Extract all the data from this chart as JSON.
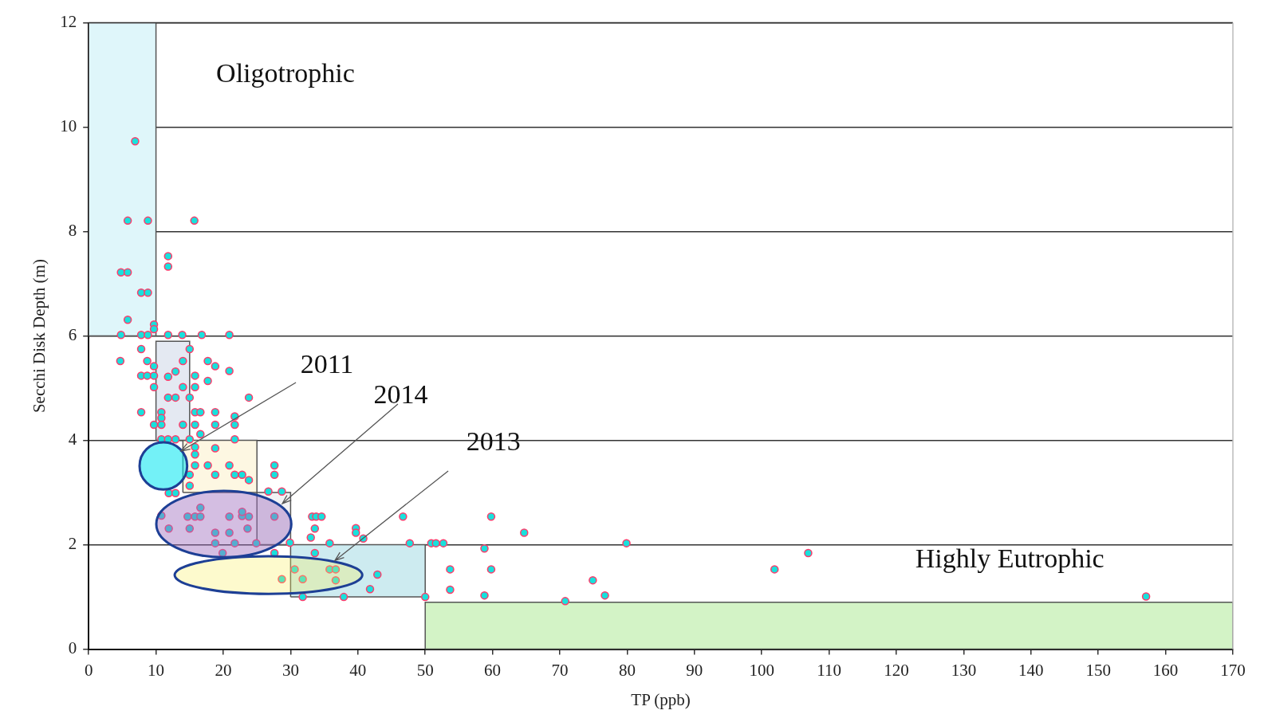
{
  "chart_data": {
    "type": "scatter",
    "xlabel": "TP (ppb)",
    "ylabel": "Secchi Disk Depth (m)",
    "xlim": [
      0,
      170
    ],
    "xticks": [
      0,
      10,
      20,
      30,
      40,
      50,
      60,
      70,
      80,
      90,
      100,
      110,
      120,
      130,
      140,
      150,
      160,
      170
    ],
    "ylim": [
      0,
      12
    ],
    "yticks": [
      0,
      2,
      4,
      6,
      8,
      10,
      12
    ],
    "grid": "y",
    "annotations": [
      "Oligotrophic",
      "Highly Eutrophic",
      {
        "text": "2011",
        "x": 13.7,
        "y": 3.8
      },
      "2014",
      "2013"
    ],
    "series": [
      {
        "type": "area",
        "color": "#dff6fa",
        "x": [
          0,
          0,
          10,
          10,
          0
        ],
        "values": [
          6,
          12,
          12,
          6,
          6
        ]
      },
      {
        "type": "area",
        "color": "#e4e9f2",
        "x": [
          10,
          10,
          15,
          15,
          10
        ],
        "values": [
          4,
          5.9,
          5.9,
          4,
          4
        ]
      },
      {
        "type": "area",
        "color": "#fdf7e2",
        "x": [
          14,
          14,
          25,
          25,
          14
        ],
        "values": [
          3,
          4,
          4,
          3,
          3
        ]
      },
      {
        "type": "area",
        "color": "#f2f2f4",
        "x": [
          25,
          25,
          30,
          30,
          25
        ],
        "values": [
          2,
          3,
          3,
          2,
          2
        ]
      },
      {
        "type": "area",
        "color": "#cdebf0",
        "x": [
          30,
          30,
          50,
          50,
          30
        ],
        "values": [
          1,
          2,
          2,
          1,
          1
        ]
      },
      {
        "type": "area",
        "color": "#d3f3c6",
        "x": [
          50,
          50,
          170,
          170,
          50
        ],
        "values": [
          0,
          0.9,
          0.9,
          0,
          0
        ]
      },
      {
        "marker": "circle",
        "color": "#19e0dc",
        "x": [
          6.9,
          5.8,
          8.8,
          15.7,
          11.8,
          11.8,
          4.8,
          5.8,
          7.8,
          8.8,
          5.8,
          9.7,
          9.7,
          4.8,
          7.8,
          8.8,
          11.8,
          13.9,
          16.8,
          20.9,
          7.8,
          15.0,
          4.7,
          8.7,
          9.7,
          14.0,
          17.7,
          18.8,
          20.9,
          7.8,
          8.7,
          9.7,
          11.8,
          12.9,
          15.8,
          17.7,
          9.7,
          14.0,
          15.8,
          23.8,
          11.8,
          12.9,
          15.0,
          7.8,
          10.8,
          15.8,
          16.6,
          18.8,
          21.7,
          10.8,
          9.7,
          10.8,
          14.0,
          15.8,
          18.8,
          21.7,
          16.6,
          10.8,
          11.8,
          12.9,
          15.0,
          21.7,
          15.8,
          18.8,
          15.8,
          17.7,
          20.9,
          15.8,
          15.0,
          18.8,
          21.7,
          22.8,
          23.8,
          27.6,
          27.6,
          15.0,
          11.9,
          12.9,
          26.7,
          28.7,
          10.8,
          14.7,
          15.8,
          16.6,
          16.6,
          20.9,
          22.8,
          23.8,
          27.6,
          22.8,
          11.9,
          15.0,
          18.8,
          20.9,
          23.6,
          18.8,
          21.7,
          24.9,
          19.9,
          27.6,
          33.2,
          33.8,
          34.6,
          33.6,
          33.0,
          29.9,
          30.6,
          28.7,
          31.8,
          31.8,
          35.8,
          39.7,
          39.7,
          40.8,
          46.7,
          47.7,
          50.9,
          51.6,
          52.7,
          59.8,
          64.7,
          58.8,
          53.7,
          59.8,
          74.9,
          53.7,
          42.9,
          41.8,
          37.9,
          50.0,
          58.8,
          70.8,
          76.7,
          79.9,
          33.6,
          35.8,
          36.7,
          36.7,
          101.9,
          106.9,
          157.1
        ],
        "values": [
          9.73,
          8.21,
          8.21,
          8.21,
          7.53,
          7.33,
          7.22,
          7.22,
          6.83,
          6.83,
          6.31,
          6.22,
          6.13,
          6.02,
          6.02,
          6.02,
          6.02,
          6.02,
          6.02,
          6.02,
          5.75,
          5.75,
          5.52,
          5.52,
          5.42,
          5.52,
          5.52,
          5.42,
          5.33,
          5.24,
          5.24,
          5.24,
          5.22,
          5.32,
          5.24,
          5.14,
          5.02,
          5.02,
          5.02,
          4.82,
          4.82,
          4.82,
          4.82,
          4.54,
          4.54,
          4.54,
          4.54,
          4.54,
          4.46,
          4.43,
          4.3,
          4.3,
          4.3,
          4.3,
          4.3,
          4.3,
          4.12,
          4.02,
          4.02,
          4.02,
          4.02,
          4.02,
          3.87,
          3.85,
          3.73,
          3.52,
          3.52,
          3.52,
          3.34,
          3.34,
          3.34,
          3.34,
          3.24,
          3.52,
          3.34,
          3.13,
          2.99,
          2.99,
          3.02,
          3.02,
          2.56,
          2.54,
          2.54,
          2.54,
          2.71,
          2.54,
          2.55,
          2.54,
          2.54,
          2.63,
          2.31,
          2.31,
          2.23,
          2.23,
          2.31,
          2.03,
          2.03,
          2.03,
          1.84,
          1.84,
          2.54,
          2.54,
          2.54,
          2.31,
          2.14,
          2.04,
          1.53,
          1.34,
          1.34,
          1.0,
          2.03,
          2.32,
          2.23,
          2.12,
          2.54,
          2.03,
          2.03,
          2.03,
          2.03,
          2.54,
          2.23,
          1.93,
          1.53,
          1.53,
          1.32,
          1.14,
          1.43,
          1.15,
          1.0,
          1.0,
          1.03,
          0.92,
          1.03,
          2.03,
          1.84,
          1.53,
          1.53,
          1.32,
          1.53,
          1.84,
          1.01
        ]
      }
    ]
  }
}
